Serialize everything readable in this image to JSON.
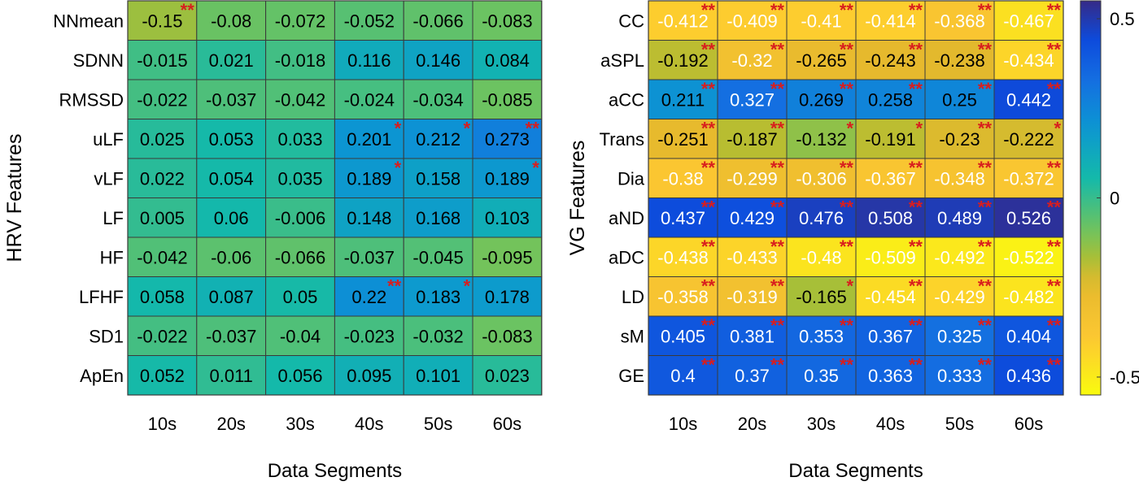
{
  "chart_data": [
    {
      "type": "heatmap",
      "name": "hrv",
      "title": "",
      "xlabel": "Data Segments",
      "ylabel": "HRV Features",
      "categories": [
        "10s",
        "20s",
        "30s",
        "40s",
        "50s",
        "60s"
      ],
      "rows": [
        "NNmean",
        "SDNN",
        "RMSSD",
        "uLF",
        "vLF",
        "LF",
        "HF",
        "LFHF",
        "SD1",
        "ApEn"
      ],
      "values": [
        [
          -0.15,
          -0.08,
          -0.072,
          -0.052,
          -0.066,
          -0.083
        ],
        [
          -0.015,
          0.021,
          -0.018,
          0.116,
          0.146,
          0.084
        ],
        [
          -0.022,
          -0.037,
          -0.042,
          -0.024,
          -0.034,
          -0.085
        ],
        [
          0.025,
          0.053,
          0.033,
          0.201,
          0.212,
          0.273
        ],
        [
          0.022,
          0.054,
          0.035,
          0.189,
          0.158,
          0.189
        ],
        [
          0.005,
          0.06,
          -0.006,
          0.148,
          0.168,
          0.103
        ],
        [
          -0.042,
          -0.06,
          -0.066,
          -0.037,
          -0.045,
          -0.095
        ],
        [
          0.058,
          0.087,
          0.05,
          0.22,
          0.183,
          0.178
        ],
        [
          -0.022,
          -0.037,
          -0.04,
          -0.023,
          -0.032,
          -0.083
        ],
        [
          0.052,
          0.011,
          0.056,
          0.095,
          0.101,
          0.023
        ]
      ],
      "significance": [
        [
          "**",
          "",
          "",
          "",
          "",
          ""
        ],
        [
          "",
          "",
          "",
          "",
          "",
          ""
        ],
        [
          "",
          "",
          "",
          "",
          "",
          ""
        ],
        [
          "",
          "",
          "",
          "*",
          "*",
          "**"
        ],
        [
          "",
          "",
          "",
          "*",
          "",
          "*"
        ],
        [
          "",
          "",
          "",
          "",
          "",
          ""
        ],
        [
          "",
          "",
          "",
          "",
          "",
          ""
        ],
        [
          "",
          "",
          "",
          "**",
          "*",
          ""
        ],
        [
          "",
          "",
          "",
          "",
          "",
          ""
        ],
        [
          "",
          "",
          "",
          "",
          "",
          ""
        ]
      ]
    },
    {
      "type": "heatmap",
      "name": "vg",
      "title": "",
      "xlabel": "Data Segments",
      "ylabel": "VG Features",
      "categories": [
        "10s",
        "20s",
        "30s",
        "40s",
        "50s",
        "60s"
      ],
      "rows": [
        "CC",
        "aSPL",
        "aCC",
        "Trans",
        "Dia",
        "aND",
        "aDC",
        "LD",
        "sM",
        "GE"
      ],
      "values": [
        [
          -0.412,
          -0.409,
          -0.41,
          -0.414,
          -0.368,
          -0.467
        ],
        [
          -0.192,
          -0.32,
          -0.265,
          -0.243,
          -0.238,
          -0.434
        ],
        [
          0.211,
          0.327,
          0.269,
          0.258,
          0.25,
          0.442
        ],
        [
          -0.251,
          -0.187,
          -0.132,
          -0.191,
          -0.23,
          -0.222
        ],
        [
          -0.38,
          -0.299,
          -0.306,
          -0.367,
          -0.348,
          -0.372
        ],
        [
          0.437,
          0.429,
          0.476,
          0.508,
          0.489,
          0.526
        ],
        [
          -0.438,
          -0.433,
          -0.48,
          -0.509,
          -0.492,
          -0.522
        ],
        [
          -0.358,
          -0.319,
          -0.165,
          -0.454,
          -0.429,
          -0.482
        ],
        [
          0.405,
          0.381,
          0.353,
          0.367,
          0.325,
          0.404
        ],
        [
          0.4,
          0.37,
          0.35,
          0.363,
          0.333,
          0.436
        ]
      ],
      "significance": [
        [
          "**",
          "**",
          "**",
          "**",
          "**",
          "**"
        ],
        [
          "**",
          "**",
          "**",
          "**",
          "**",
          "**"
        ],
        [
          "**",
          "**",
          "**",
          "**",
          "**",
          "**"
        ],
        [
          "**",
          "**",
          "*",
          "*",
          "**",
          "*"
        ],
        [
          "**",
          "**",
          "**",
          "**",
          "**",
          "**"
        ],
        [
          "**",
          "**",
          "**",
          "**",
          "**",
          "**"
        ],
        [
          "**",
          "**",
          "**",
          "**",
          "**",
          "**"
        ],
        [
          "**",
          "**",
          "*",
          "**",
          "**",
          "**"
        ],
        [
          "**",
          "**",
          "**",
          "**",
          "**",
          "**"
        ],
        [
          "**",
          "**",
          "**",
          "**",
          "**",
          "**"
        ]
      ]
    }
  ],
  "colorbar": {
    "type": "colorbar",
    "range": [
      -0.55,
      0.55
    ],
    "tick_values": [
      0.5,
      0,
      -0.5
    ],
    "tick_labels": [
      "0.5",
      "0",
      "-0.5"
    ]
  },
  "colors": {
    "significance_star": "#d81e1e",
    "grid_line": "#3a3a3a",
    "text_dark": "#000000",
    "text_light": "#ffffff"
  }
}
